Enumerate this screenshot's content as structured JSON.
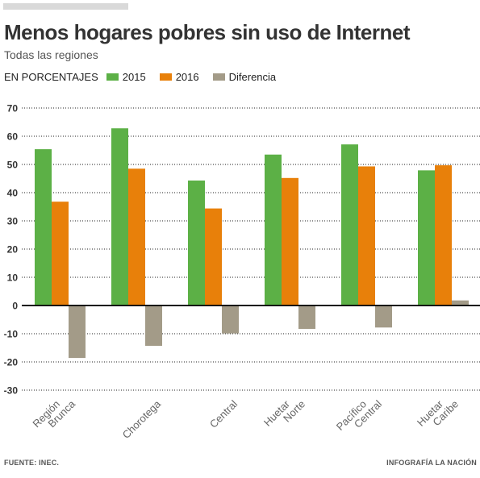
{
  "title": "Menos hogares pobres sin uso de Internet",
  "subtitle": "Todas las regiones",
  "legend": {
    "units": "EN PORCENTAJES",
    "items": [
      {
        "label": "2015",
        "color": "#5cb046"
      },
      {
        "label": "2016",
        "color": "#e8800a"
      },
      {
        "label": "Diferencia",
        "color": "#a39b88"
      }
    ]
  },
  "footer": {
    "source": "FUENTE: INEC.",
    "credit": "INFOGRAFÍA LA NACIÓN"
  },
  "chart_data": {
    "type": "bar",
    "categories": [
      [
        "Región",
        "Brunca"
      ],
      [
        "Chorotega"
      ],
      [
        "Central"
      ],
      [
        "Huetar",
        "Norte"
      ],
      [
        "Pacífico",
        "Central"
      ],
      [
        "Huetar",
        "Caribe"
      ]
    ],
    "series": [
      {
        "name": "2015",
        "color": "#5cb046",
        "values": [
          55.4,
          62.8,
          44.3,
          53.5,
          57.1,
          47.9
        ]
      },
      {
        "name": "2016",
        "color": "#e8800a",
        "values": [
          36.8,
          48.5,
          34.4,
          45.2,
          49.3,
          49.7
        ]
      },
      {
        "name": "Diferencia",
        "color": "#a39b88",
        "values": [
          -18.6,
          -14.3,
          -9.9,
          -8.3,
          -7.8,
          1.8
        ]
      }
    ],
    "yticks": [
      70,
      60,
      50,
      40,
      30,
      20,
      10,
      0,
      -10,
      -20,
      -30
    ],
    "ylim": [
      -30,
      70
    ],
    "grid": "dotted",
    "legend_position": "top-left"
  }
}
